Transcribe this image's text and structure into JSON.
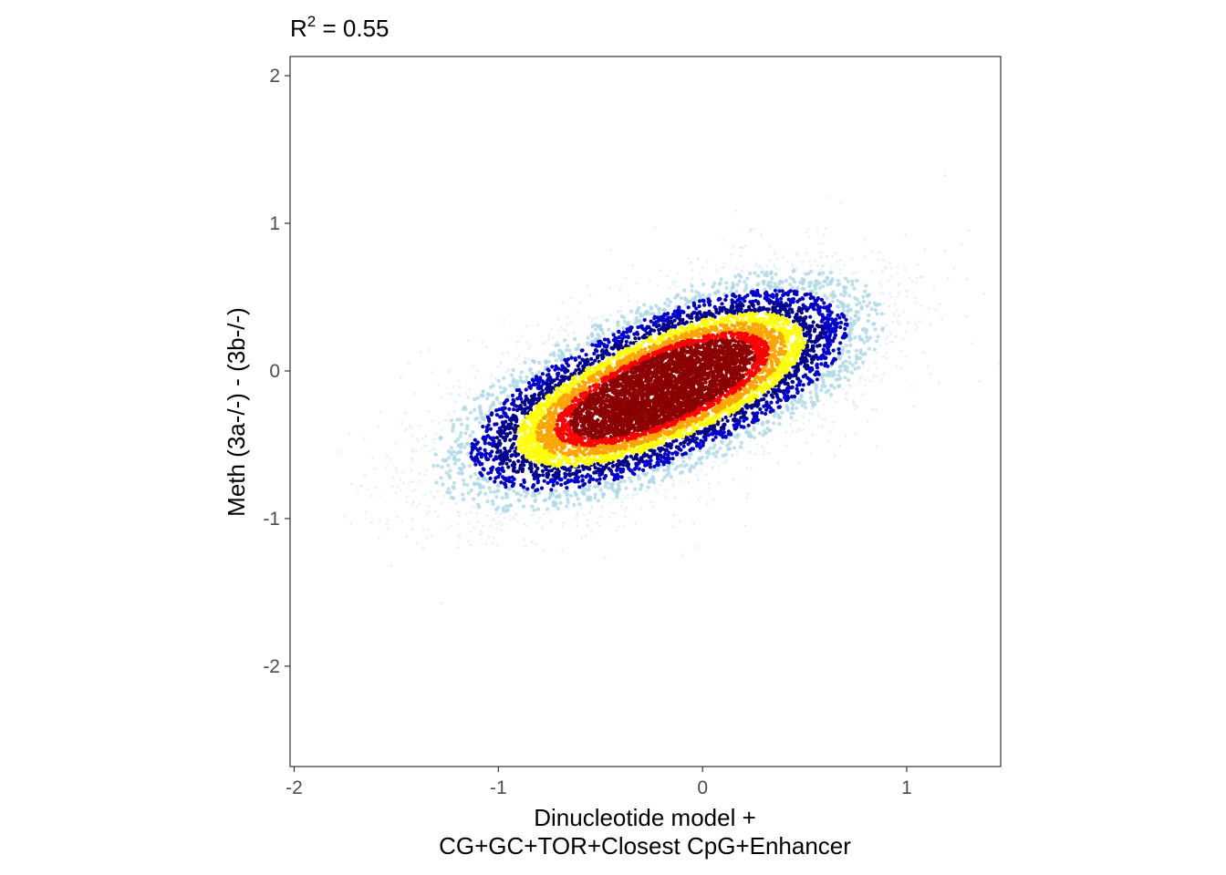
{
  "chart_data": {
    "type": "scatter",
    "title": {
      "main": "R",
      "superscript": "2",
      "suffix": " = 0.55"
    },
    "xlabel": {
      "line1": "Dinucleotide model +",
      "line2": "CG+GC+TOR+Closest CpG+Enhancer"
    },
    "ylabel": "Meth (3a-/-) - (3b-/-)",
    "xlim": [
      -2.02,
      1.46
    ],
    "ylim": [
      -2.68,
      2.13
    ],
    "x_ticks": [
      -2,
      -1,
      0,
      1
    ],
    "y_ticks": [
      -2,
      -1,
      0,
      1,
      2
    ],
    "x_tick_labels": [
      "-2",
      "-1",
      "0",
      "1"
    ],
    "y_tick_labels": [
      "-2",
      "-1",
      "0",
      "1",
      "2"
    ],
    "grid": false,
    "coloring": "point density",
    "density_colors": [
      "#d3e8f0",
      "#add8e6",
      "#0000cd",
      "#00008b",
      "#ffff00",
      "#ffa500",
      "#ff0000",
      "#8b0000"
    ],
    "density_clusters": [
      {
        "center": [
          -0.45,
          -0.3
        ],
        "sd_major": 0.42,
        "sd_minor": 0.22,
        "angle_deg": 30,
        "weight": 0.5
      },
      {
        "center": [
          0.05,
          0.05
        ],
        "sd_major": 0.4,
        "sd_minor": 0.22,
        "angle_deg": 30,
        "weight": 0.5
      }
    ],
    "correlation_r2": 0.55
  }
}
